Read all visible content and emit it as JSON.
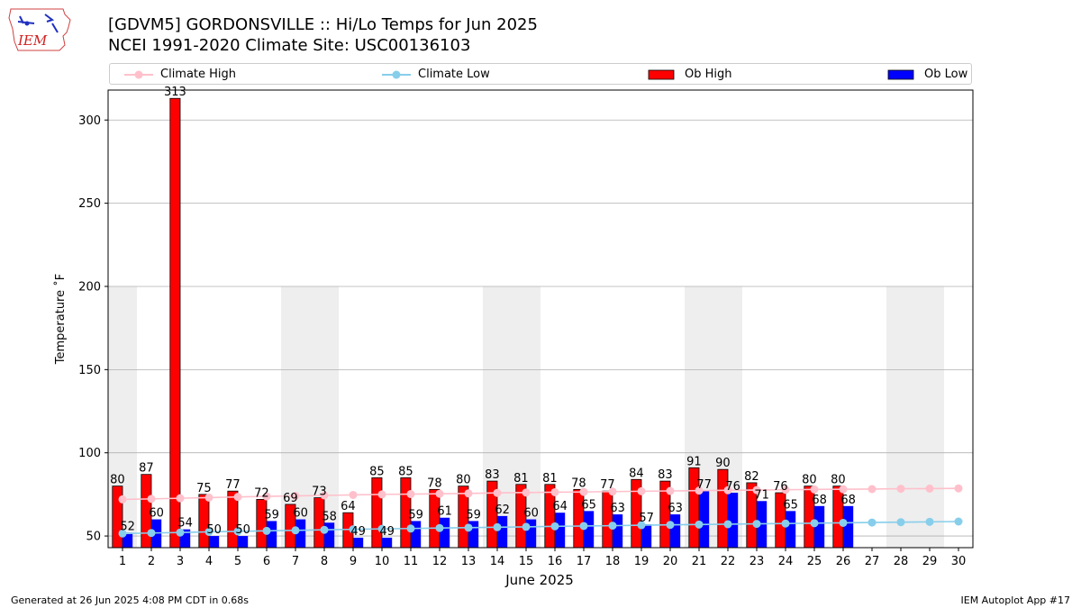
{
  "header": {
    "logo_text": "IEM",
    "title_line1": "[GDVM5] GORDONSVILLE :: Hi/Lo Temps for Jun 2025",
    "title_line2": "NCEI 1991-2020 Climate Site: USC00136103"
  },
  "footer": {
    "generated": "Generated at 26 Jun 2025 4:08 PM CDT in 0.68s",
    "app": "IEM Autoplot App #17"
  },
  "colors": {
    "climate_high": "#ffc0cb",
    "climate_low": "#87ceeb",
    "ob_high": "#ff0000",
    "ob_low": "#0000ff",
    "weekend_band": "#eeeeee",
    "grid": "#b0b0b0"
  },
  "chart_data": {
    "type": "bar",
    "xlabel": "June 2025",
    "ylabel": "Temperature ˚F",
    "ylim": [
      43,
      318
    ],
    "xlim": [
      0.5,
      30.5
    ],
    "yticks": [
      50,
      100,
      150,
      200,
      250,
      300
    ],
    "x": [
      1,
      2,
      3,
      4,
      5,
      6,
      7,
      8,
      9,
      10,
      11,
      12,
      13,
      14,
      15,
      16,
      17,
      18,
      19,
      20,
      21,
      22,
      23,
      24,
      25,
      26,
      27,
      28,
      29,
      30
    ],
    "grid": "horizontal",
    "legend_position": "top",
    "weekend_days": [
      1,
      7,
      8,
      14,
      15,
      21,
      22,
      28,
      29
    ],
    "series": [
      {
        "name": "Climate High",
        "kind": "line",
        "values": [
          72,
          72.3,
          72.7,
          73.1,
          73.5,
          73.8,
          74.1,
          74.4,
          74.7,
          75,
          75.2,
          75.4,
          75.6,
          75.9,
          76.1,
          76.3,
          76.5,
          76.7,
          76.9,
          77.1,
          77.3,
          77.5,
          77.6,
          77.8,
          78,
          78.1,
          78.2,
          78.4,
          78.5,
          78.6
        ]
      },
      {
        "name": "Climate Low",
        "kind": "line",
        "values": [
          51.5,
          51.8,
          52.1,
          52.5,
          52.8,
          53.1,
          53.4,
          53.7,
          54,
          54.3,
          54.5,
          54.8,
          55,
          55.3,
          55.5,
          55.8,
          56,
          56.2,
          56.5,
          56.7,
          56.9,
          57.1,
          57.3,
          57.5,
          57.7,
          57.9,
          58.1,
          58.3,
          58.5,
          58.7
        ]
      },
      {
        "name": "Ob High",
        "kind": "bar",
        "values": [
          80,
          87,
          313,
          75,
          77,
          72,
          69,
          73,
          64,
          85,
          85,
          78,
          80,
          83,
          81,
          81,
          78,
          77,
          84,
          83,
          91,
          90,
          82,
          76,
          80,
          80,
          null,
          null,
          null,
          null
        ]
      },
      {
        "name": "Ob Low",
        "kind": "bar",
        "values": [
          52,
          60,
          54,
          50,
          50,
          59,
          60,
          58,
          49,
          49,
          59,
          61,
          59,
          62,
          60,
          64,
          65,
          63,
          57,
          63,
          77,
          76,
          71,
          65,
          68,
          68,
          null,
          null,
          null,
          null
        ]
      }
    ]
  }
}
